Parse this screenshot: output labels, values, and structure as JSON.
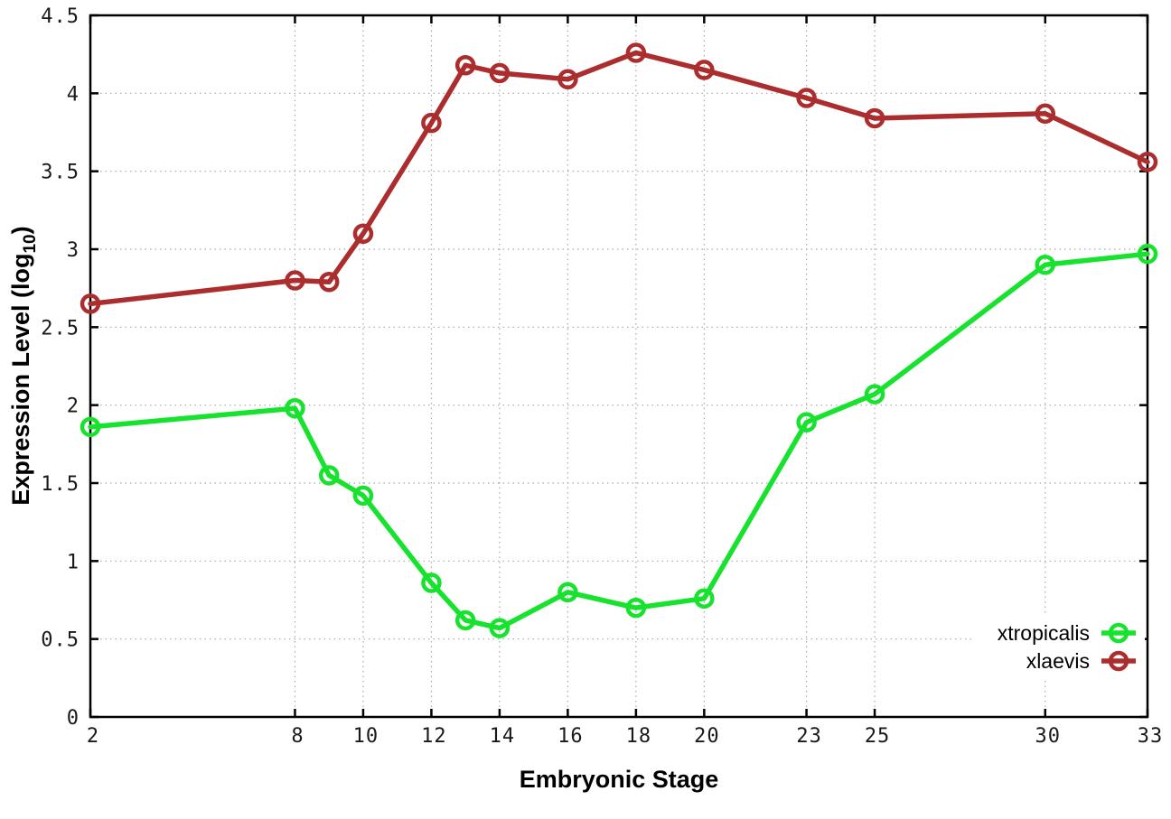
{
  "figure": {
    "background_color": "#ffffff",
    "border_color": "#000000",
    "grid_color": "#a8a8a8"
  },
  "chart_data": {
    "type": "line",
    "title": "",
    "xlabel": "Embryonic Stage",
    "ylabel_main": "Expression Level (log",
    "ylabel_subscript": "10",
    "ylabel_end": ")",
    "x": [
      2,
      8,
      9,
      10,
      12,
      13,
      14,
      16,
      18,
      20,
      23,
      25,
      30,
      33
    ],
    "xlim": [
      2,
      33
    ],
    "ylim": [
      0,
      4.5
    ],
    "xticks": [
      2,
      8,
      10,
      12,
      14,
      16,
      18,
      20,
      23,
      25,
      30,
      33
    ],
    "xtick_labels": [
      "2",
      "8",
      "10",
      "12",
      "14",
      "16",
      "18",
      "20",
      "23",
      "25",
      "30",
      "33"
    ],
    "yticks": [
      0,
      0.5,
      1,
      1.5,
      2,
      2.5,
      3,
      3.5,
      4,
      4.5
    ],
    "ytick_labels": [
      "0",
      "0.5",
      "1",
      "1.5",
      "2",
      "2.5",
      "3",
      "3.5",
      "4",
      "4.5"
    ],
    "grid": true,
    "marker": "open-circle",
    "legend_position": "inside-bottom-right",
    "series": [
      {
        "name": "xtropicalis",
        "color": "#17e22e",
        "values": [
          1.86,
          1.98,
          1.55,
          1.42,
          0.86,
          0.62,
          0.57,
          0.8,
          0.7,
          0.76,
          1.89,
          2.07,
          2.9,
          2.97
        ]
      },
      {
        "name": "xlaevis",
        "color": "#ab2d2d",
        "values": [
          2.65,
          2.8,
          2.79,
          3.1,
          3.81,
          4.18,
          4.13,
          4.09,
          4.26,
          4.15,
          3.97,
          3.84,
          3.87,
          3.56
        ]
      }
    ]
  }
}
